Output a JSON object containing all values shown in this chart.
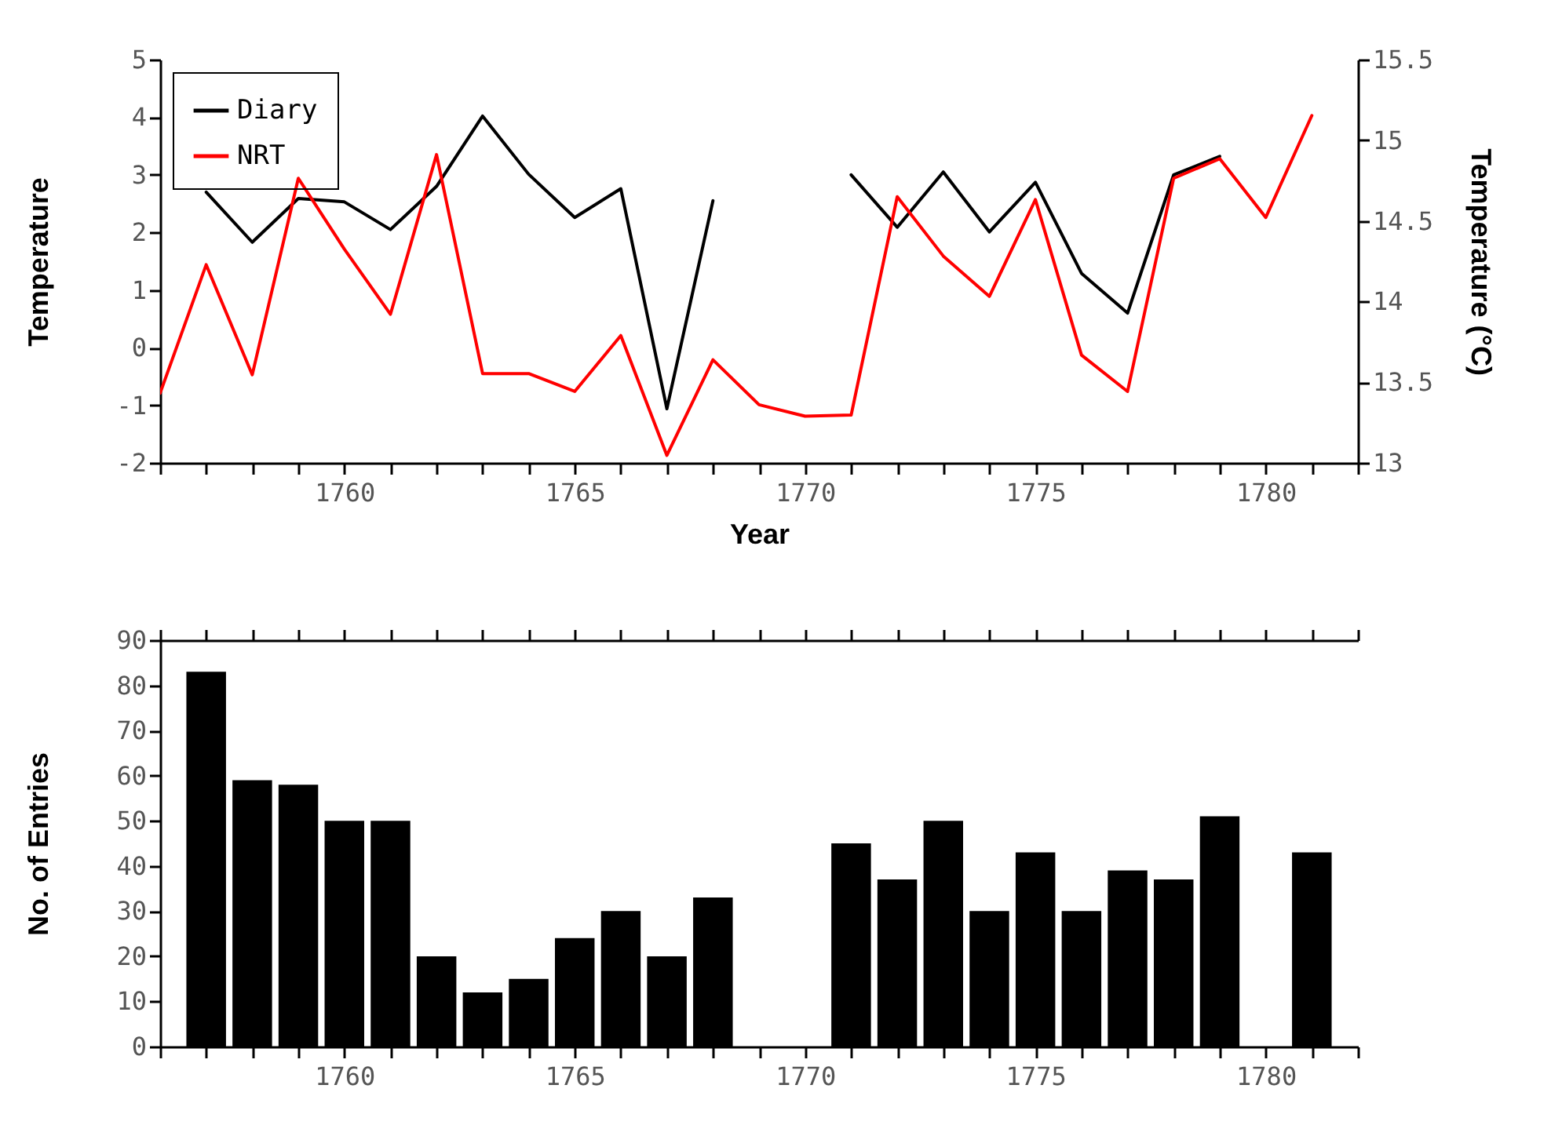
{
  "chart_data": [
    {
      "type": "line",
      "xlabel": "Year",
      "ylabel": "Temperature",
      "y2label": "Temperature (°C)",
      "legend": "top left",
      "line_style": "solid",
      "grid": false,
      "x": [
        1756,
        1757,
        1758,
        1759,
        1760,
        1761,
        1762,
        1763,
        1764,
        1765,
        1766,
        1767,
        1768,
        1769,
        1770,
        1771,
        1772,
        1773,
        1774,
        1775,
        1776,
        1777,
        1778,
        1779,
        1780,
        1781
      ],
      "series": [
        {
          "name": "Diary",
          "color": "#000000",
          "values": [
            null,
            2.7,
            1.83,
            2.59,
            2.53,
            2.05,
            2.8,
            4.02,
            3.01,
            2.26,
            2.76,
            -1.06,
            2.55,
            null,
            null,
            3.0,
            2.09,
            3.05,
            2.01,
            2.87,
            1.29,
            0.6,
            3.0,
            3.32,
            null,
            null
          ]
        },
        {
          "name": "NRT",
          "color": "#ff0000",
          "values": [
            -0.79,
            1.44,
            -0.47,
            2.94,
            1.71,
            0.58,
            3.35,
            -0.45,
            -0.45,
            -0.76,
            0.21,
            -1.87,
            -0.21,
            -0.99,
            -1.19,
            -1.17,
            2.62,
            1.59,
            0.89,
            2.57,
            -0.13,
            -0.76,
            2.94,
            3.28,
            2.26,
            4.03
          ]
        }
      ],
      "xlim": [
        1756,
        1782
      ],
      "xticks": [
        {
          "value": 1756,
          "label": null
        },
        {
          "value": 1757,
          "label": null
        },
        {
          "value": 1758,
          "label": null
        },
        {
          "value": 1759,
          "label": null
        },
        1760,
        {
          "value": 1761,
          "label": null
        },
        {
          "value": 1762,
          "label": null
        },
        {
          "value": 1763,
          "label": null
        },
        {
          "value": 1764,
          "label": null
        },
        1765,
        {
          "value": 1766,
          "label": null
        },
        {
          "value": 1767,
          "label": null
        },
        {
          "value": 1768,
          "label": null
        },
        {
          "value": 1769,
          "label": null
        },
        1770,
        {
          "value": 1771,
          "label": null
        },
        {
          "value": 1772,
          "label": null
        },
        {
          "value": 1773,
          "label": null
        },
        {
          "value": 1774,
          "label": null
        },
        1775,
        {
          "value": 1776,
          "label": null
        },
        {
          "value": 1777,
          "label": null
        },
        {
          "value": 1778,
          "label": null
        },
        {
          "value": 1779,
          "label": null
        },
        1780,
        {
          "value": 1781,
          "label": null
        },
        {
          "value": 1782,
          "label": null
        }
      ],
      "ylim": [
        -2,
        5
      ],
      "yticks": [
        -2,
        -1,
        0,
        1,
        2,
        3,
        4,
        5
      ],
      "y2lim": [
        13,
        15.5
      ],
      "y2ticks": [
        13,
        13.5,
        14,
        14.5,
        15,
        15.5
      ]
    },
    {
      "type": "bar",
      "ylabel": "No. of Entries",
      "color": "#000000",
      "grid": false,
      "x": [
        1757,
        1758,
        1759,
        1760,
        1761,
        1762,
        1763,
        1764,
        1765,
        1766,
        1767,
        1768,
        1771,
        1772,
        1773,
        1774,
        1775,
        1776,
        1777,
        1778,
        1779,
        1781
      ],
      "values": [
        83,
        59,
        58,
        50,
        50,
        20,
        12,
        15,
        24,
        30,
        20,
        33,
        45,
        37,
        50,
        30,
        43,
        30,
        39,
        37,
        51,
        43
      ],
      "xlim": [
        1756,
        1782
      ],
      "xticks": [
        {
          "value": 1756,
          "label": null
        },
        {
          "value": 1757,
          "label": null
        },
        {
          "value": 1758,
          "label": null
        },
        {
          "value": 1759,
          "label": null
        },
        1760,
        {
          "value": 1761,
          "label": null
        },
        {
          "value": 1762,
          "label": null
        },
        {
          "value": 1763,
          "label": null
        },
        {
          "value": 1764,
          "label": null
        },
        1765,
        {
          "value": 1766,
          "label": null
        },
        {
          "value": 1767,
          "label": null
        },
        {
          "value": 1768,
          "label": null
        },
        {
          "value": 1769,
          "label": null
        },
        1770,
        {
          "value": 1771,
          "label": null
        },
        {
          "value": 1772,
          "label": null
        },
        {
          "value": 1773,
          "label": null
        },
        {
          "value": 1774,
          "label": null
        },
        1775,
        {
          "value": 1776,
          "label": null
        },
        {
          "value": 1777,
          "label": null
        },
        {
          "value": 1778,
          "label": null
        },
        {
          "value": 1779,
          "label": null
        },
        1780,
        {
          "value": 1781,
          "label": null
        },
        {
          "value": 1782,
          "label": null
        }
      ],
      "ylim": [
        0,
        90
      ],
      "yticks": [
        0,
        10,
        20,
        30,
        40,
        50,
        60,
        70,
        80,
        90
      ]
    }
  ]
}
